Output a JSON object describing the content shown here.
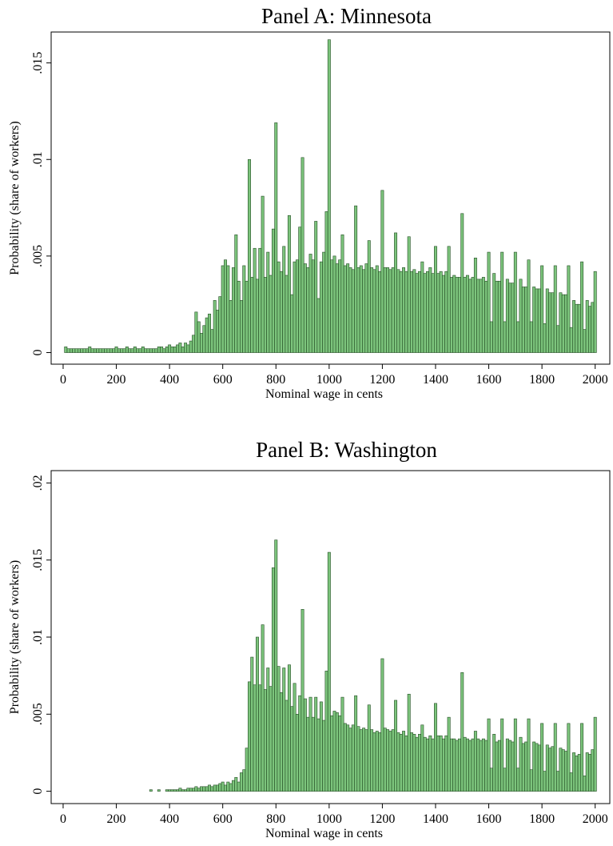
{
  "chart_data": [
    {
      "type": "histogram",
      "title": "Panel A: Minnesota",
      "xlabel": "Nominal wage in cents",
      "ylabel": "Probability (share of workers)",
      "color": "#7cc47c",
      "edgecolor": "#234d23",
      "bins": [
        5,
        15,
        25,
        35,
        45,
        55,
        65,
        75,
        85,
        95,
        105,
        115,
        125,
        135,
        145,
        155,
        165,
        175,
        185,
        195,
        205,
        215,
        225,
        235,
        245,
        255,
        265,
        275,
        285,
        295,
        305,
        315,
        325,
        335,
        345,
        355,
        365,
        375,
        385,
        395,
        405,
        415,
        425,
        435,
        445,
        455,
        465,
        475,
        485,
        495,
        505,
        515,
        525,
        535,
        545,
        555,
        565,
        575,
        585,
        595,
        605,
        615,
        625,
        635,
        645,
        655,
        665,
        675,
        685,
        695,
        705,
        715,
        725,
        735,
        745,
        755,
        765,
        775,
        785,
        795,
        805,
        815,
        825,
        835,
        845,
        855,
        865,
        875,
        885,
        895,
        905,
        915,
        925,
        935,
        945,
        955,
        965,
        975,
        985,
        995,
        1005,
        1015,
        1025,
        1035,
        1045,
        1055,
        1065,
        1075,
        1085,
        1095,
        1105,
        1115,
        1125,
        1135,
        1145,
        1155,
        1165,
        1175,
        1185,
        1195,
        1205,
        1215,
        1225,
        1235,
        1245,
        1255,
        1265,
        1275,
        1285,
        1295,
        1305,
        1315,
        1325,
        1335,
        1345,
        1355,
        1365,
        1375,
        1385,
        1395,
        1405,
        1415,
        1425,
        1435,
        1445,
        1455,
        1465,
        1475,
        1485,
        1495,
        1505,
        1515,
        1525,
        1535,
        1545,
        1555,
        1565,
        1575,
        1585,
        1595,
        1605,
        1615,
        1625,
        1635,
        1645,
        1655,
        1665,
        1675,
        1685,
        1695,
        1705,
        1715,
        1725,
        1735,
        1745,
        1755,
        1765,
        1775,
        1785,
        1795,
        1805,
        1815,
        1825,
        1835,
        1845,
        1855,
        1865,
        1875,
        1885,
        1895,
        1905,
        1915,
        1925,
        1935,
        1945,
        1955,
        1965,
        1975,
        1985,
        1995,
        2005
      ],
      "values": [
        0.0003,
        0.0002,
        0.0002,
        0.0002,
        0.0002,
        0.0002,
        0.0002,
        0.0002,
        0.0002,
        0.0003,
        0.0002,
        0.0002,
        0.0002,
        0.0002,
        0.0002,
        0.0002,
        0.0002,
        0.0002,
        0.0002,
        0.0003,
        0.0002,
        0.0002,
        0.0002,
        0.0003,
        0.0002,
        0.0002,
        0.0003,
        0.0002,
        0.0002,
        0.0003,
        0.0002,
        0.0002,
        0.0002,
        0.0002,
        0.0002,
        0.0003,
        0.0003,
        0.0002,
        0.0003,
        0.0004,
        0.0003,
        0.0003,
        0.0004,
        0.0005,
        0.0003,
        0.0005,
        0.0004,
        0.0006,
        0.0009,
        0.0021,
        0.0016,
        0.001,
        0.0014,
        0.0018,
        0.002,
        0.0012,
        0.0027,
        0.0022,
        0.0029,
        0.0045,
        0.0048,
        0.0045,
        0.0027,
        0.0044,
        0.0061,
        0.0037,
        0.0027,
        0.0045,
        0.0037,
        0.01,
        0.0039,
        0.0054,
        0.0038,
        0.0054,
        0.0081,
        0.0039,
        0.0052,
        0.004,
        0.0064,
        0.0119,
        0.0047,
        0.0042,
        0.0055,
        0.004,
        0.0071,
        0.003,
        0.0047,
        0.0048,
        0.0065,
        0.0101,
        0.0046,
        0.0044,
        0.0051,
        0.0048,
        0.0068,
        0.0028,
        0.0047,
        0.0052,
        0.0073,
        0.0162,
        0.0048,
        0.005,
        0.0046,
        0.0048,
        0.0061,
        0.0045,
        0.0046,
        0.0044,
        0.0043,
        0.0076,
        0.0044,
        0.0045,
        0.0043,
        0.0046,
        0.0058,
        0.0044,
        0.0043,
        0.0045,
        0.0042,
        0.0084,
        0.0044,
        0.0044,
        0.0043,
        0.0044,
        0.0062,
        0.0043,
        0.0042,
        0.0044,
        0.0042,
        0.006,
        0.0042,
        0.0043,
        0.0041,
        0.0042,
        0.0047,
        0.0041,
        0.0042,
        0.0044,
        0.0041,
        0.0055,
        0.0041,
        0.0042,
        0.004,
        0.0042,
        0.0055,
        0.0039,
        0.004,
        0.0039,
        0.0039,
        0.0072,
        0.0039,
        0.004,
        0.0038,
        0.0039,
        0.0049,
        0.0038,
        0.0038,
        0.0039,
        0.0037,
        0.0052,
        0.0016,
        0.0041,
        0.0037,
        0.0037,
        0.0052,
        0.0016,
        0.0038,
        0.0036,
        0.0036,
        0.0052,
        0.0016,
        0.0038,
        0.0034,
        0.0034,
        0.0048,
        0.0016,
        0.0034,
        0.0033,
        0.0033,
        0.0045,
        0.0015,
        0.0033,
        0.0031,
        0.0031,
        0.0045,
        0.0014,
        0.0031,
        0.003,
        0.003,
        0.0045,
        0.0013,
        0.0027,
        0.0025,
        0.0025,
        0.0047,
        0.0012,
        0.0027,
        0.0024,
        0.0026,
        0.0042
      ],
      "xlim": [
        -45,
        2055
      ],
      "ylim": [
        -0.0006,
        0.0166
      ],
      "xticks": [
        0,
        200,
        400,
        600,
        800,
        1000,
        1200,
        1400,
        1600,
        1800,
        2000
      ],
      "yticks": [
        0,
        {
          "value": 0.005,
          "label": ".005"
        },
        {
          "value": 0.01,
          "label": ".01"
        },
        {
          "value": 0.015,
          "label": ".015"
        }
      ]
    },
    {
      "type": "histogram",
      "title": "Panel B: Washington",
      "xlabel": "Nominal wage in cents",
      "ylabel": "Probability (share of workers)",
      "color": "#7cc47c",
      "edgecolor": "#234d23",
      "bins": [
        5,
        15,
        25,
        35,
        45,
        55,
        65,
        75,
        85,
        95,
        105,
        115,
        125,
        135,
        145,
        155,
        165,
        175,
        185,
        195,
        205,
        215,
        225,
        235,
        245,
        255,
        265,
        275,
        285,
        295,
        305,
        315,
        325,
        335,
        345,
        355,
        365,
        375,
        385,
        395,
        405,
        415,
        425,
        435,
        445,
        455,
        465,
        475,
        485,
        495,
        505,
        515,
        525,
        535,
        545,
        555,
        565,
        575,
        585,
        595,
        605,
        615,
        625,
        635,
        645,
        655,
        665,
        675,
        685,
        695,
        705,
        715,
        725,
        735,
        745,
        755,
        765,
        775,
        785,
        795,
        805,
        815,
        825,
        835,
        845,
        855,
        865,
        875,
        885,
        895,
        905,
        915,
        925,
        935,
        945,
        955,
        965,
        975,
        985,
        995,
        1005,
        1015,
        1025,
        1035,
        1045,
        1055,
        1065,
        1075,
        1085,
        1095,
        1105,
        1115,
        1125,
        1135,
        1145,
        1155,
        1165,
        1175,
        1185,
        1195,
        1205,
        1215,
        1225,
        1235,
        1245,
        1255,
        1265,
        1275,
        1285,
        1295,
        1305,
        1315,
        1325,
        1335,
        1345,
        1355,
        1365,
        1375,
        1385,
        1395,
        1405,
        1415,
        1425,
        1435,
        1445,
        1455,
        1465,
        1475,
        1485,
        1495,
        1505,
        1515,
        1525,
        1535,
        1545,
        1555,
        1565,
        1575,
        1585,
        1595,
        1605,
        1615,
        1625,
        1635,
        1645,
        1655,
        1665,
        1675,
        1685,
        1695,
        1705,
        1715,
        1725,
        1735,
        1745,
        1755,
        1765,
        1775,
        1785,
        1795,
        1805,
        1815,
        1825,
        1835,
        1845,
        1855,
        1865,
        1875,
        1885,
        1895,
        1905,
        1915,
        1925,
        1935,
        1945,
        1955,
        1965,
        1975,
        1985,
        1995,
        2005
      ],
      "values": [
        0,
        0,
        0,
        0,
        0,
        0,
        0,
        0,
        0,
        0,
        0,
        0,
        0,
        0,
        0,
        0,
        0,
        0,
        0,
        0,
        0,
        0,
        0,
        0,
        0,
        0,
        0,
        0,
        0,
        0,
        0,
        0,
        0.0001,
        0,
        0,
        0.0001,
        0,
        0,
        0.0001,
        0.0001,
        0.0001,
        0.0001,
        0.0001,
        0.0002,
        0.0001,
        0.0001,
        0.0002,
        0.0002,
        0.0002,
        0.0003,
        0.0002,
        0.0003,
        0.0003,
        0.0003,
        0.0004,
        0.0003,
        0.0004,
        0.0004,
        0.0005,
        0.0006,
        0.0004,
        0.0006,
        0.0005,
        0.0007,
        0.0009,
        0.0006,
        0.0012,
        0.0014,
        0.0028,
        0.0071,
        0.0087,
        0.0069,
        0.01,
        0.0069,
        0.0108,
        0.0066,
        0.008,
        0.0068,
        0.0145,
        0.0163,
        0.0081,
        0.0064,
        0.008,
        0.0059,
        0.0082,
        0.0055,
        0.007,
        0.005,
        0.0062,
        0.0118,
        0.006,
        0.0048,
        0.0061,
        0.0048,
        0.0061,
        0.0047,
        0.0058,
        0.0046,
        0.0078,
        0.0155,
        0.0049,
        0.0052,
        0.0051,
        0.0049,
        0.0061,
        0.0044,
        0.0043,
        0.0041,
        0.0043,
        0.0062,
        0.0042,
        0.004,
        0.0041,
        0.004,
        0.0056,
        0.004,
        0.0038,
        0.0039,
        0.0038,
        0.0086,
        0.0041,
        0.004,
        0.0039,
        0.004,
        0.0059,
        0.0038,
        0.0037,
        0.0039,
        0.0036,
        0.0063,
        0.0038,
        0.0037,
        0.0035,
        0.0037,
        0.0043,
        0.0035,
        0.0034,
        0.0036,
        0.0034,
        0.0057,
        0.0036,
        0.0036,
        0.0034,
        0.0036,
        0.0048,
        0.0034,
        0.0034,
        0.0033,
        0.0034,
        0.0077,
        0.0035,
        0.0034,
        0.0033,
        0.0034,
        0.0039,
        0.0034,
        0.0033,
        0.0034,
        0.0033,
        0.0047,
        0.0015,
        0.0037,
        0.0032,
        0.0033,
        0.0047,
        0.0015,
        0.0034,
        0.0033,
        0.0032,
        0.0047,
        0.0015,
        0.0035,
        0.0031,
        0.0032,
        0.0047,
        0.0014,
        0.0032,
        0.0031,
        0.003,
        0.0044,
        0.0013,
        0.003,
        0.0028,
        0.0029,
        0.0044,
        0.0013,
        0.0028,
        0.0027,
        0.0026,
        0.0044,
        0.0012,
        0.0025,
        0.0023,
        0.0024,
        0.0044,
        0.001,
        0.0025,
        0.0024,
        0.0027,
        0.0048
      ],
      "xlim": [
        -45,
        2055
      ],
      "ylim": [
        -0.0008,
        0.0208
      ],
      "xticks": [
        0,
        200,
        400,
        600,
        800,
        1000,
        1200,
        1400,
        1600,
        1800,
        2000
      ],
      "yticks": [
        0,
        {
          "value": 0.005,
          "label": ".005"
        },
        {
          "value": 0.01,
          "label": ".01"
        },
        {
          "value": 0.015,
          "label": ".015"
        },
        {
          "value": 0.02,
          "label": ".02"
        }
      ]
    }
  ]
}
